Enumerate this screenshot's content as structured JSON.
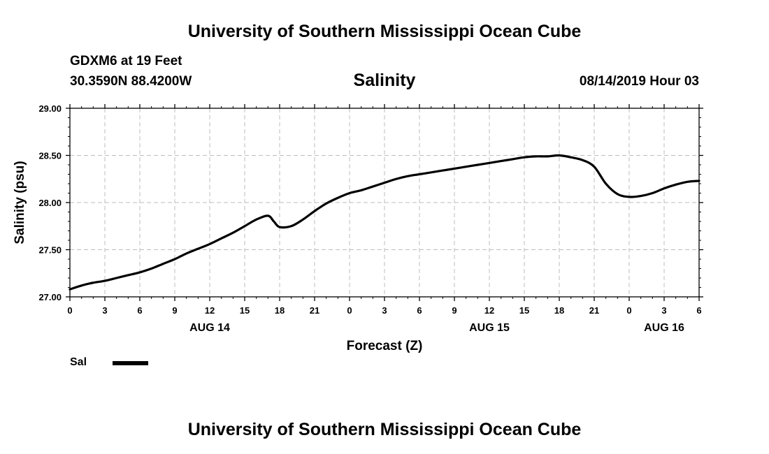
{
  "header": {
    "title": "University of Southern Mississippi Ocean Cube",
    "station": "GDXM6 at 19 Feet",
    "coords": "30.3590N 88.4200W",
    "datetime": "08/14/2019 Hour 03"
  },
  "footer": {
    "title": "University of Southern Mississippi Ocean Cube"
  },
  "legend": {
    "label": "Sal",
    "color": "#000000"
  },
  "chart_data": {
    "type": "line",
    "title": "Salinity",
    "xlabel": "Forecast (Z)",
    "ylabel": "Salinity (psu)",
    "ylim": [
      27.0,
      29.0
    ],
    "xlim": [
      0,
      54
    ],
    "x_unit": "hours since AUG 14 00Z",
    "grid": true,
    "y_ticks": [
      "27.00",
      "27.50",
      "28.00",
      "28.50",
      "29.00"
    ],
    "x_tick_labels": [
      "0",
      "3",
      "6",
      "9",
      "12",
      "15",
      "18",
      "21",
      "0",
      "3",
      "6",
      "9",
      "12",
      "15",
      "18",
      "21",
      "0",
      "3",
      "6"
    ],
    "date_labels": [
      {
        "label": "AUG 14",
        "x": 12
      },
      {
        "label": "AUG 15",
        "x": 36
      },
      {
        "label": "AUG 16",
        "x": 51
      }
    ],
    "series": [
      {
        "name": "Sal",
        "color": "#000000",
        "x": [
          0,
          1,
          2,
          3,
          4,
          5,
          6,
          7,
          8,
          9,
          10,
          11,
          12,
          13,
          14,
          15,
          16,
          17,
          17.5,
          18,
          19,
          20,
          21,
          22,
          23,
          24,
          25,
          26,
          27,
          28,
          29,
          30,
          31,
          32,
          33,
          34,
          35,
          36,
          37,
          38,
          39,
          40,
          41,
          42,
          43,
          44,
          45,
          46,
          47,
          48,
          49,
          50,
          51,
          52,
          53,
          54
        ],
        "values": [
          27.08,
          27.12,
          27.15,
          27.17,
          27.2,
          27.23,
          27.26,
          27.3,
          27.35,
          27.4,
          27.46,
          27.51,
          27.56,
          27.62,
          27.68,
          27.75,
          27.82,
          27.86,
          27.8,
          27.74,
          27.75,
          27.82,
          27.91,
          27.99,
          28.05,
          28.1,
          28.13,
          28.17,
          28.21,
          28.25,
          28.28,
          28.3,
          28.32,
          28.34,
          28.36,
          28.38,
          28.4,
          28.42,
          28.44,
          28.46,
          28.48,
          28.49,
          28.49,
          28.5,
          28.48,
          28.45,
          28.38,
          28.2,
          28.09,
          28.06,
          28.07,
          28.1,
          28.15,
          28.19,
          28.22,
          28.23
        ]
      }
    ]
  }
}
